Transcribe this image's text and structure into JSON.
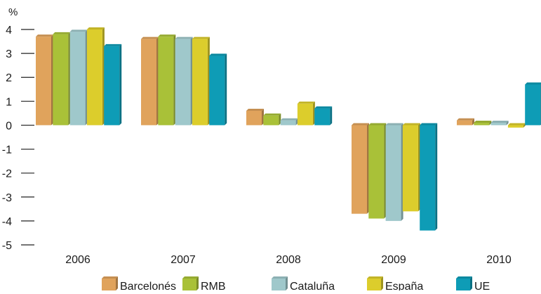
{
  "chart_data": {
    "type": "bar",
    "title": "",
    "xlabel": "",
    "ylabel": "%",
    "ylim": [
      -5,
      4
    ],
    "yticks": [
      "4",
      "3",
      "2",
      "1",
      "0",
      "-1",
      "-2",
      "-3",
      "-4",
      "-5"
    ],
    "grid": false,
    "legend_position": "bottom",
    "categories": [
      "2006",
      "2007",
      "2008",
      "2009",
      "2010"
    ],
    "series": [
      {
        "name": "Barcelonés",
        "color": "#e0a35c",
        "values": [
          3.7,
          3.6,
          0.6,
          -3.7,
          0.2
        ]
      },
      {
        "name": "RMB",
        "color": "#a9c138",
        "values": [
          3.8,
          3.7,
          0.4,
          -3.9,
          0.1
        ]
      },
      {
        "name": "Cataluña",
        "color": "#9fc8cb",
        "values": [
          3.9,
          3.6,
          0.2,
          -4.0,
          0.1
        ]
      },
      {
        "name": "España",
        "color": "#dccd2c",
        "values": [
          4.0,
          3.6,
          0.9,
          -3.6,
          -0.1
        ]
      },
      {
        "name": "UE",
        "color": "#0e9cb6",
        "values": [
          3.3,
          2.9,
          0.7,
          -4.4,
          1.7
        ]
      }
    ]
  }
}
